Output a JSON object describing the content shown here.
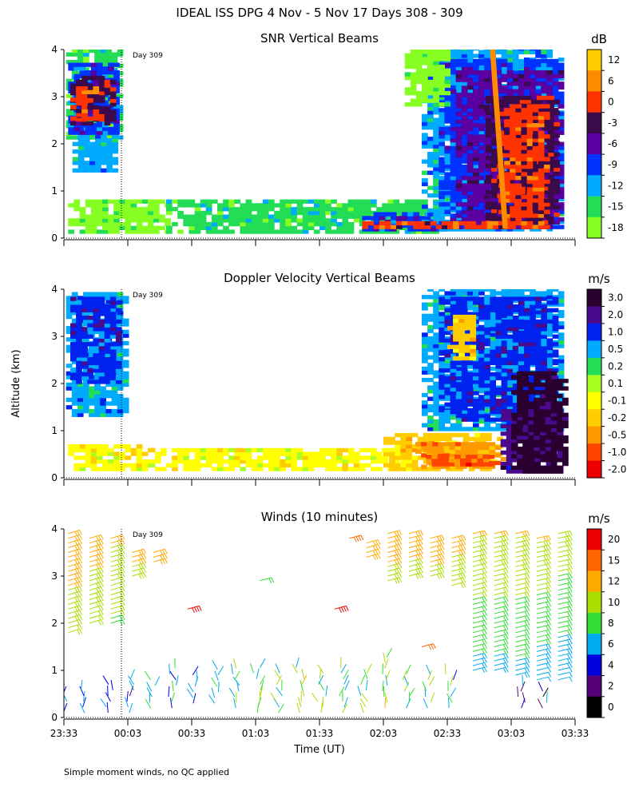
{
  "page_title": "IDEAL ISS DPG   4 Nov -  5 Nov 17 Days 308 - 309",
  "ylabel": "Altitude (km)",
  "xlabel": "Time (UT)",
  "footnote": "Simple moment winds, no QC applied",
  "day_marker": "Day 309",
  "chart_data": [
    {
      "id": "snr",
      "type": "heatmap",
      "title": "SNR Vertical Beams",
      "xlabel": "",
      "ylabel": "Altitude (km)",
      "x_ticks": [
        "23:33",
        "00:03",
        "00:33",
        "01:03",
        "01:33",
        "02:03",
        "02:33",
        "03:03",
        "03:33"
      ],
      "xlim": [
        0,
        240
      ],
      "y_ticks": [
        "0",
        "1",
        "2",
        "3",
        "4"
      ],
      "ylim": [
        0,
        4
      ],
      "day_marker_min": 27,
      "colorbar": {
        "unit": "dB",
        "labels": [
          "12",
          "6",
          "0",
          "-3",
          "-6",
          "-9",
          "-12",
          "-15",
          "-18"
        ],
        "colors": [
          "#ffcc00",
          "#ff8c00",
          "#ff3300",
          "#3a0a4a",
          "#5a00a0",
          "#0033ff",
          "#00aaff",
          "#22dd55",
          "#88ff22"
        ]
      },
      "regions": [
        {
          "t0": 1,
          "t1": 27,
          "z0": 2.1,
          "z1": 4.0,
          "level": 7
        },
        {
          "t0": 4,
          "t1": 25,
          "z0": 1.4,
          "z1": 2.3,
          "level": 6
        },
        {
          "t0": 2,
          "t1": 26,
          "z0": 2.2,
          "z1": 3.7,
          "level": 5
        },
        {
          "t0": 3,
          "t1": 23,
          "z0": 2.4,
          "z1": 3.4,
          "level": 3
        },
        {
          "t0": 3,
          "t1": 16,
          "z0": 2.5,
          "z1": 3.2,
          "level": 2
        },
        {
          "t0": 2,
          "t1": 48,
          "z0": 0.1,
          "z1": 0.8,
          "level": 8
        },
        {
          "t0": 48,
          "t1": 180,
          "z0": 0.1,
          "z1": 0.75,
          "level": 7
        },
        {
          "t0": 140,
          "t1": 178,
          "z0": 0.15,
          "z1": 0.5,
          "level": 5
        },
        {
          "t0": 168,
          "t1": 234,
          "z0": 0.15,
          "z1": 4.0,
          "level": 6
        },
        {
          "t0": 176,
          "t1": 234,
          "z0": 0.2,
          "z1": 3.8,
          "level": 5
        },
        {
          "t0": 184,
          "t1": 232,
          "z0": 0.2,
          "z1": 3.5,
          "level": 4
        },
        {
          "t0": 198,
          "t1": 230,
          "z0": 0.3,
          "z1": 3.0,
          "level": 3
        },
        {
          "t0": 204,
          "t1": 226,
          "z0": 0.2,
          "z1": 2.8,
          "level": 2
        },
        {
          "t0": 160,
          "t1": 180,
          "z0": 2.8,
          "z1": 4.0,
          "level": 8
        },
        {
          "t0": 140,
          "t1": 210,
          "z0": 0.2,
          "z1": 0.35,
          "level": 2
        }
      ],
      "bright_band": {
        "t_top": 200,
        "t_bottom": 206,
        "level": 1
      }
    },
    {
      "id": "doppler",
      "type": "heatmap",
      "title": "Doppler Velocity Vertical Beams",
      "xlabel": "",
      "ylabel": "Altitude (km)",
      "x_ticks": [
        "23:33",
        "00:03",
        "00:33",
        "01:03",
        "01:33",
        "02:03",
        "02:33",
        "03:03",
        "03:33"
      ],
      "xlim": [
        0,
        240
      ],
      "y_ticks": [
        "0",
        "1",
        "2",
        "3",
        "4"
      ],
      "ylim": [
        0,
        4
      ],
      "day_marker_min": 27,
      "colorbar": {
        "unit": "m/s",
        "labels": [
          "3.0",
          "2.0",
          "1.0",
          "0.5",
          "0.2",
          "0.1",
          "-0.1",
          "-0.2",
          "-0.5",
          "-1.0",
          "-2.0"
        ],
        "colors": [
          "#2a0030",
          "#4b0a8c",
          "#0022ee",
          "#00aaff",
          "#22dd55",
          "#aaff22",
          "#ffff00",
          "#ffcc00",
          "#ff9900",
          "#ff4400",
          "#ee0000"
        ]
      },
      "regions": [
        {
          "t0": 1,
          "t1": 29,
          "z0": 1.3,
          "z1": 3.9,
          "level": 3
        },
        {
          "t0": 3,
          "t1": 26,
          "z0": 2.0,
          "z1": 3.8,
          "level": 2
        },
        {
          "t0": 2,
          "t1": 40,
          "z0": 0.15,
          "z1": 0.65,
          "level": 6
        },
        {
          "t0": 40,
          "t1": 160,
          "z0": 0.15,
          "z1": 0.6,
          "level": 6
        },
        {
          "t0": 150,
          "t1": 205,
          "z0": 0.15,
          "z1": 0.9,
          "level": 7
        },
        {
          "t0": 165,
          "t1": 205,
          "z0": 0.2,
          "z1": 0.7,
          "level": 8
        },
        {
          "t0": 170,
          "t1": 200,
          "z0": 0.25,
          "z1": 0.45,
          "level": 9
        },
        {
          "t0": 168,
          "t1": 232,
          "z0": 1.0,
          "z1": 4.0,
          "level": 3
        },
        {
          "t0": 176,
          "t1": 230,
          "z0": 1.2,
          "z1": 3.8,
          "level": 2
        },
        {
          "t0": 205,
          "t1": 234,
          "z0": 0.1,
          "z1": 1.4,
          "level": 1
        },
        {
          "t0": 210,
          "t1": 234,
          "z0": 0.1,
          "z1": 2.2,
          "level": 0
        },
        {
          "t0": 180,
          "t1": 192,
          "z0": 2.5,
          "z1": 3.4,
          "level": 7
        }
      ]
    },
    {
      "id": "winds",
      "type": "scatter",
      "title": "Winds (10 minutes)",
      "xlabel": "Time (UT)",
      "ylabel": "Altitude (km)",
      "x_ticks": [
        "23:33",
        "00:03",
        "00:33",
        "01:03",
        "01:33",
        "02:03",
        "02:33",
        "03:03",
        "03:33"
      ],
      "xlim": [
        0,
        240
      ],
      "y_ticks": [
        "0",
        "1",
        "2",
        "3",
        "4"
      ],
      "ylim": [
        0,
        4
      ],
      "day_marker_min": 27,
      "colorbar": {
        "unit": "m/s",
        "labels": [
          "20",
          "15",
          "12",
          "10",
          "8",
          "6",
          "4",
          "2",
          "0"
        ],
        "colors": [
          "#ee0000",
          "#ff6600",
          "#ffaa00",
          "#aadd00",
          "#33dd33",
          "#00aaee",
          "#0000dd",
          "#550077",
          "#000000"
        ]
      },
      "barb_columns": [
        {
          "t": 5,
          "z0": 1.8,
          "z1": 3.95,
          "speed_top": 16,
          "speed_bot": 12
        },
        {
          "t": 15,
          "z0": 2.0,
          "z1": 3.9,
          "speed_top": 15,
          "speed_bot": 12
        },
        {
          "t": 25,
          "z0": 2.0,
          "z1": 3.85,
          "speed_top": 14,
          "speed_bot": 11
        },
        {
          "t": 35,
          "z0": 3.0,
          "z1": 3.6,
          "speed_top": 15,
          "speed_bot": 13
        },
        {
          "t": 45,
          "z0": 3.3,
          "z1": 3.5,
          "speed_top": 15,
          "speed_bot": 14
        },
        {
          "t": 145,
          "z0": 3.4,
          "z1": 3.7,
          "speed_top": 16,
          "speed_bot": 15
        },
        {
          "t": 155,
          "z0": 2.9,
          "z1": 3.95,
          "speed_top": 15,
          "speed_bot": 13
        },
        {
          "t": 165,
          "z0": 3.0,
          "z1": 3.95,
          "speed_top": 15,
          "speed_bot": 13
        },
        {
          "t": 175,
          "z0": 3.0,
          "z1": 3.9,
          "speed_top": 16,
          "speed_bot": 13
        },
        {
          "t": 185,
          "z0": 2.8,
          "z1": 3.9,
          "speed_top": 15,
          "speed_bot": 12
        },
        {
          "t": 195,
          "z0": 1.0,
          "z1": 3.95,
          "speed_top": 14,
          "speed_bot": 8
        },
        {
          "t": 205,
          "z0": 1.0,
          "z1": 3.95,
          "speed_top": 14,
          "speed_bot": 8
        },
        {
          "t": 215,
          "z0": 0.9,
          "z1": 3.95,
          "speed_top": 14,
          "speed_bot": 8
        },
        {
          "t": 225,
          "z0": 0.8,
          "z1": 3.9,
          "speed_top": 14,
          "speed_bot": 7
        },
        {
          "t": 235,
          "z0": 0.8,
          "z1": 3.95,
          "speed_top": 13,
          "speed_bot": 7
        }
      ],
      "low_barbs": [
        {
          "t": 3,
          "z0": 0.1,
          "z1": 0.7,
          "speed": 5
        },
        {
          "t": 13,
          "z0": 0.1,
          "z1": 0.6,
          "speed": 7
        },
        {
          "t": 24,
          "z0": 0.1,
          "z1": 0.7,
          "speed": 4
        },
        {
          "t": 34,
          "z0": 0.1,
          "z1": 0.9,
          "speed": 6
        },
        {
          "t": 44,
          "z0": 0.2,
          "z1": 0.9,
          "speed": 8
        },
        {
          "t": 54,
          "z0": 0.2,
          "z1": 1.1,
          "speed": 7
        },
        {
          "t": 64,
          "z0": 0.3,
          "z1": 1.0,
          "speed": 8
        },
        {
          "t": 74,
          "z0": 0.3,
          "z1": 1.1,
          "speed": 9
        },
        {
          "t": 84,
          "z0": 0.2,
          "z1": 1.1,
          "speed": 9
        },
        {
          "t": 94,
          "z0": 0.1,
          "z1": 1.1,
          "speed": 10
        },
        {
          "t": 104,
          "z0": 0.1,
          "z1": 1.0,
          "speed": 10
        },
        {
          "t": 114,
          "z0": 0.1,
          "z1": 1.1,
          "speed": 11
        },
        {
          "t": 124,
          "z0": 0.1,
          "z1": 1.0,
          "speed": 11
        },
        {
          "t": 134,
          "z0": 0.1,
          "z1": 1.1,
          "speed": 10
        },
        {
          "t": 144,
          "z0": 0.1,
          "z1": 1.0,
          "speed": 11
        },
        {
          "t": 154,
          "z0": 0.2,
          "z1": 1.4,
          "speed": 11
        },
        {
          "t": 164,
          "z0": 0.2,
          "z1": 1.0,
          "speed": 11
        },
        {
          "t": 174,
          "z0": 0.2,
          "z1": 1.0,
          "speed": 10
        },
        {
          "t": 184,
          "z0": 0.2,
          "z1": 1.0,
          "speed": 9
        },
        {
          "t": 218,
          "z0": 0.2,
          "z1": 0.7,
          "speed": 5
        },
        {
          "t": 228,
          "z0": 0.2,
          "z1": 0.6,
          "speed": 4
        }
      ],
      "isolated_barbs": [
        {
          "t": 58,
          "z": 2.3,
          "speed": 20
        },
        {
          "t": 92,
          "z": 2.9,
          "speed": 11
        },
        {
          "t": 127,
          "z": 2.3,
          "speed": 19
        },
        {
          "t": 134,
          "z": 3.8,
          "speed": 18
        },
        {
          "t": 168,
          "z": 1.5,
          "speed": 17
        }
      ]
    }
  ]
}
